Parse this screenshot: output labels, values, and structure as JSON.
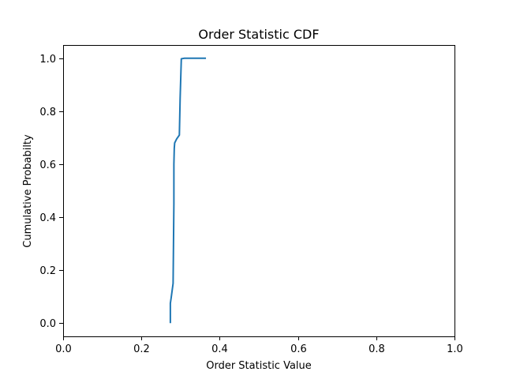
{
  "chart_data": {
    "type": "line",
    "title": "Order Statistic CDF",
    "xlabel": "Order Statistic Value",
    "ylabel": "Cumulative Probabilty",
    "xlim": [
      0.0,
      1.0
    ],
    "ylim": [
      -0.05,
      1.05
    ],
    "xticks": [
      0.0,
      0.2,
      0.4,
      0.6,
      0.8,
      1.0
    ],
    "xtick_labels": [
      "0.0",
      "0.2",
      "0.4",
      "0.6",
      "0.8",
      "1.0"
    ],
    "yticks": [
      0.0,
      0.2,
      0.4,
      0.6,
      0.8,
      1.0
    ],
    "ytick_labels": [
      "0.0",
      "0.2",
      "0.4",
      "0.6",
      "0.8",
      "1.0"
    ],
    "grid": false,
    "series": [
      {
        "color": "#1f77b4",
        "x": [
          0.274,
          0.274,
          0.276,
          0.281,
          0.282,
          0.283,
          0.283,
          0.283,
          0.284,
          0.285,
          0.29,
          0.297,
          0.299,
          0.302,
          0.31,
          0.33,
          0.365
        ],
        "y": [
          0.0,
          0.075,
          0.095,
          0.15,
          0.3,
          0.45,
          0.55,
          0.6,
          0.66,
          0.68,
          0.695,
          0.71,
          0.85,
          0.998,
          1.0,
          1.0,
          1.0
        ]
      }
    ]
  }
}
